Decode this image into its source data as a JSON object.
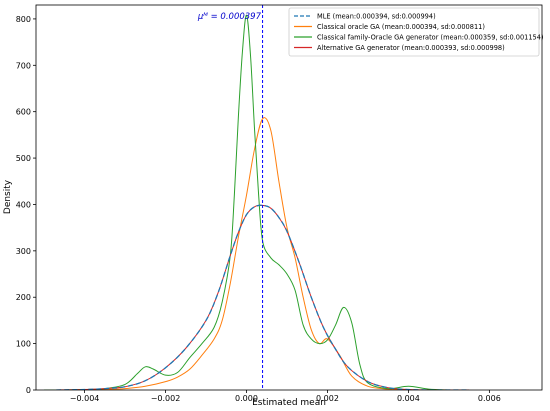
{
  "chart_data": {
    "type": "line",
    "title": "",
    "xlabel": "Estimated mean",
    "ylabel": "Density",
    "xlim": [
      -0.0052,
      0.0073
    ],
    "ylim": [
      0,
      830
    ],
    "xticks": [
      -0.004,
      -0.002,
      0.0,
      0.002,
      0.004,
      0.006
    ],
    "xtick_labels": [
      "−0.004",
      "−0.002",
      "0.000",
      "0.002",
      "0.004",
      "0.006"
    ],
    "yticks": [
      0,
      100,
      200,
      300,
      400,
      500,
      600,
      700,
      800
    ],
    "ytick_labels": [
      "0",
      "100",
      "200",
      "300",
      "400",
      "500",
      "600",
      "700",
      "800"
    ],
    "grid": false,
    "legend_position": "top-right",
    "annotation": {
      "text": "μᴹ = 0.000397",
      "x": 0.000397,
      "color": "#0000cc"
    },
    "vline": {
      "x": 0.000397,
      "color": "#0000ff",
      "style": "dashed"
    },
    "series": [
      {
        "name": "MLE (mean:0.000394, sd:0.000994)",
        "color": "#1f77b4",
        "dash": true,
        "x": [
          -0.0047,
          -0.004,
          -0.0035,
          -0.003,
          -0.0025,
          -0.002,
          -0.0015,
          -0.001,
          -0.0007,
          -0.0004,
          -0.0002,
          0.0,
          0.0002,
          0.0004,
          0.0006,
          0.0008,
          0.001,
          0.0013,
          0.0016,
          0.0019,
          0.0022,
          0.0025,
          0.003,
          0.0035,
          0.004,
          0.0045,
          0.005,
          0.0055
        ],
        "y": [
          0,
          1,
          3,
          7,
          20,
          48,
          90,
          150,
          210,
          290,
          340,
          378,
          395,
          398,
          392,
          372,
          342,
          275,
          200,
          135,
          88,
          50,
          18,
          5,
          1,
          0,
          0,
          0
        ]
      },
      {
        "name": "Classical oracle GA (mean:0.000394, sd:0.000811)",
        "color": "#ff7f0e",
        "dash": false,
        "x": [
          -0.004,
          -0.0035,
          -0.003,
          -0.0025,
          -0.002,
          -0.0017,
          -0.0014,
          -0.0011,
          -0.0008,
          -0.0006,
          -0.0004,
          -0.0002,
          0.0,
          0.0002,
          0.0004,
          0.0006,
          0.0008,
          0.001,
          0.0012,
          0.0014,
          0.0016,
          0.0018,
          0.002,
          0.0023,
          0.0026,
          0.003,
          0.0035,
          0.004
        ],
        "y": [
          0,
          1,
          3,
          8,
          18,
          28,
          45,
          75,
          110,
          150,
          230,
          330,
          420,
          520,
          585,
          560,
          450,
          350,
          285,
          200,
          130,
          100,
          110,
          75,
          30,
          8,
          2,
          0
        ]
      },
      {
        "name": "Classical family-Oracle GA generator (mean:0.000359, sd:0.001154)",
        "color": "#2ca02c",
        "dash": false,
        "x": [
          -0.005,
          -0.0045,
          -0.004,
          -0.0035,
          -0.003,
          -0.0027,
          -0.0025,
          -0.0023,
          -0.002,
          -0.0017,
          -0.0014,
          -0.0011,
          -0.0008,
          -0.0006,
          -0.0004,
          -0.0003,
          -0.0002,
          -0.0001,
          0.0,
          0.0001,
          0.0002,
          0.0003,
          0.0004,
          0.0006,
          0.0008,
          0.001,
          0.0012,
          0.0014,
          0.0016,
          0.0018,
          0.002,
          0.0022,
          0.0024,
          0.0026,
          0.0028,
          0.003,
          0.0035,
          0.004,
          0.0045,
          0.005
        ],
        "y": [
          0,
          0,
          1,
          3,
          12,
          35,
          50,
          45,
          32,
          38,
          70,
          100,
          135,
          190,
          290,
          420,
          590,
          730,
          808,
          720,
          560,
          420,
          320,
          285,
          270,
          250,
          215,
          140,
          110,
          100,
          108,
          140,
          178,
          145,
          55,
          15,
          3,
          8,
          2,
          0
        ]
      },
      {
        "name": "Alternative GA generator (mean:0.000393, sd:0.000998)",
        "color": "#d62728",
        "dash": false,
        "x": [
          -0.0047,
          -0.004,
          -0.0035,
          -0.003,
          -0.0025,
          -0.002,
          -0.0015,
          -0.001,
          -0.0007,
          -0.0004,
          -0.0002,
          0.0,
          0.0002,
          0.0004,
          0.0006,
          0.0008,
          0.001,
          0.0013,
          0.0016,
          0.0019,
          0.0022,
          0.0025,
          0.003,
          0.0035,
          0.004,
          0.0045,
          0.005,
          0.0055
        ],
        "y": [
          0,
          1,
          3,
          7,
          20,
          48,
          90,
          150,
          210,
          290,
          340,
          378,
          395,
          398,
          392,
          372,
          342,
          275,
          200,
          135,
          88,
          50,
          18,
          5,
          1,
          0,
          0,
          0
        ]
      }
    ]
  }
}
